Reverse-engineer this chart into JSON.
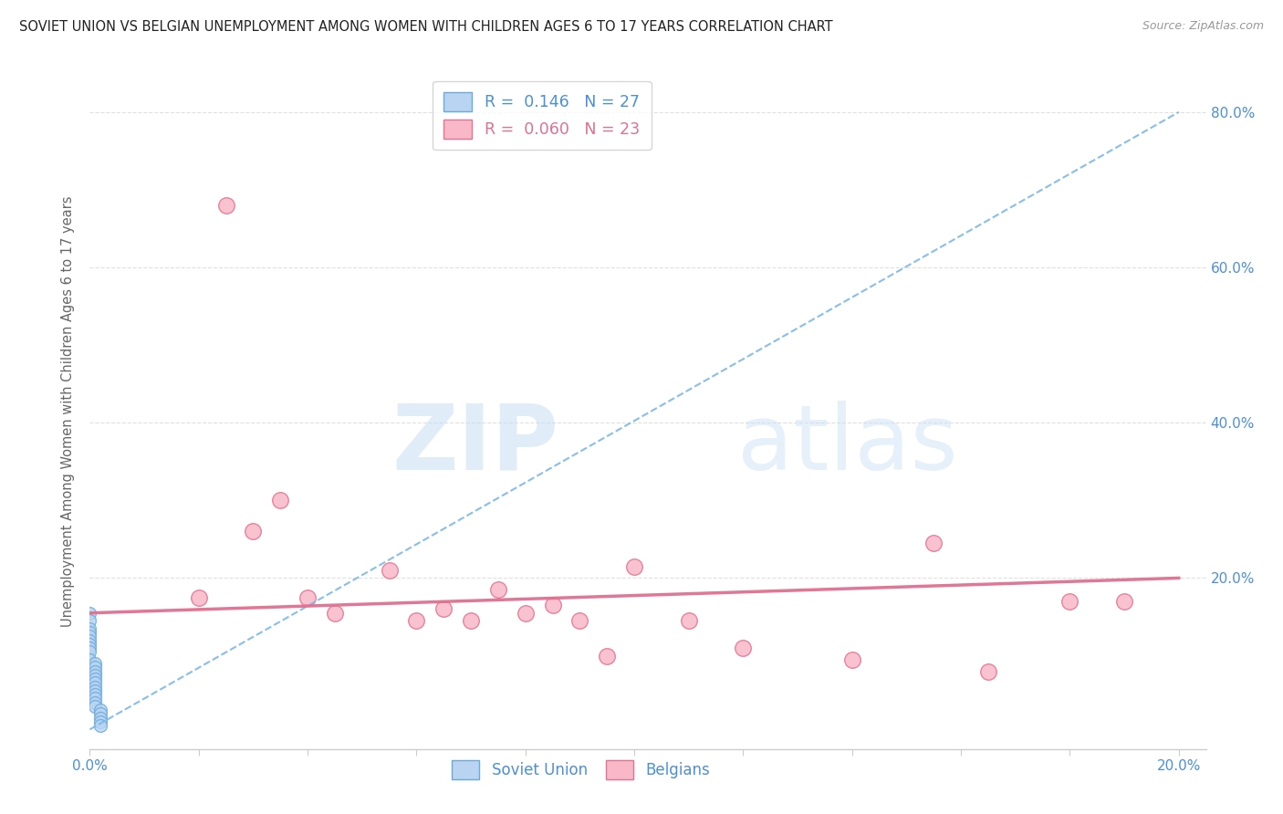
{
  "title": "SOVIET UNION VS BELGIAN UNEMPLOYMENT AMONG WOMEN WITH CHILDREN AGES 6 TO 17 YEARS CORRELATION CHART",
  "source": "Source: ZipAtlas.com",
  "ylabel": "Unemployment Among Women with Children Ages 6 to 17 years",
  "soviet_R": 0.146,
  "soviet_N": 27,
  "belgian_R": 0.06,
  "belgian_N": 23,
  "soviet_color": "#b8d4f0",
  "soviet_edge_color": "#6aaade",
  "soviet_line_color": "#7ab8e8",
  "belgian_color": "#f8b8c8",
  "belgian_edge_color": "#e87090",
  "belgian_line_color": "#e07090",
  "soviet_x": [
    0.0,
    0.0,
    0.0,
    0.0,
    0.0,
    0.0,
    0.0,
    0.0,
    0.0,
    0.0,
    0.001,
    0.001,
    0.001,
    0.001,
    0.001,
    0.001,
    0.001,
    0.001,
    0.001,
    0.001,
    0.001,
    0.001,
    0.002,
    0.002,
    0.002,
    0.002,
    0.002
  ],
  "soviet_y": [
    0.155,
    0.145,
    0.135,
    0.13,
    0.125,
    0.12,
    0.115,
    0.11,
    0.105,
    0.095,
    0.09,
    0.085,
    0.08,
    0.075,
    0.07,
    0.065,
    0.06,
    0.055,
    0.05,
    0.045,
    0.04,
    0.035,
    0.03,
    0.025,
    0.02,
    0.015,
    0.01
  ],
  "belgian_x": [
    0.02,
    0.025,
    0.03,
    0.035,
    0.04,
    0.045,
    0.055,
    0.06,
    0.065,
    0.07,
    0.075,
    0.08,
    0.085,
    0.09,
    0.095,
    0.1,
    0.11,
    0.12,
    0.14,
    0.155,
    0.165,
    0.18,
    0.19
  ],
  "belgian_y": [
    0.175,
    0.68,
    0.26,
    0.3,
    0.175,
    0.155,
    0.21,
    0.145,
    0.16,
    0.145,
    0.185,
    0.155,
    0.165,
    0.145,
    0.1,
    0.215,
    0.145,
    0.11,
    0.095,
    0.245,
    0.08,
    0.17,
    0.17
  ],
  "soviet_trend": [
    0.0,
    0.2,
    0.0,
    0.8
  ],
  "belgian_trend_start_y": 0.155,
  "belgian_trend_end_y": 0.2,
  "xlim": [
    0.0,
    0.205
  ],
  "ylim": [
    -0.02,
    0.85
  ],
  "grid_color": "#e0e0e0",
  "bg_color": "#ffffff",
  "title_color": "#222222",
  "right_tick_color": "#4a90d9",
  "bottom_tick_color": "#4a90d9",
  "watermark_color": "#cce4f8"
}
